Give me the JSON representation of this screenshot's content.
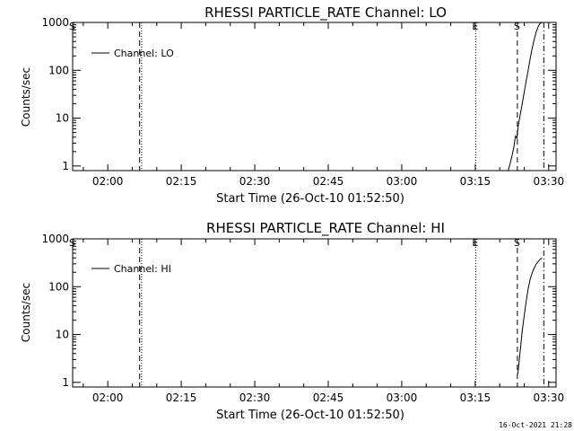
{
  "footer_timestamp": "16-Oct-2021 21:28",
  "colors": {
    "background": "#ffffff",
    "ink": "#000000"
  },
  "chart_data": [
    {
      "type": "line",
      "title": "RHESSI PARTICLE_RATE Channel: LO",
      "xlabel": "Start Time (26-Oct-10 01:52:50)",
      "ylabel": "Counts/sec",
      "y_scale": "log",
      "ylim": [
        0.8,
        1000
      ],
      "xlim_minutes": [
        112.83,
        211.5
      ],
      "x_ticks": [
        {
          "label": "02:00",
          "min": 120
        },
        {
          "label": "02:15",
          "min": 135
        },
        {
          "label": "02:30",
          "min": 150
        },
        {
          "label": "02:45",
          "min": 165
        },
        {
          "label": "03:00",
          "min": 180
        },
        {
          "label": "03:15",
          "min": 195
        },
        {
          "label": "03:30",
          "min": 210
        }
      ],
      "y_ticks": [
        {
          "label": "1",
          "value": 1
        },
        {
          "label": "10",
          "value": 10
        },
        {
          "label": "100",
          "value": 100
        },
        {
          "label": "1000",
          "value": 1000
        }
      ],
      "legend": {
        "label": "Channel: LO",
        "placement": "top-left"
      },
      "markers": [
        {
          "label": "S",
          "min": 112.83,
          "style": "dashed"
        },
        {
          "label": "",
          "min": 126.5,
          "style": "dashed"
        },
        {
          "label": "",
          "min": 126.9,
          "style": "dotted"
        },
        {
          "label": "E",
          "min": 195.1,
          "style": "dotted"
        },
        {
          "label": "S",
          "min": 203.6,
          "style": "dashed"
        },
        {
          "label": "",
          "min": 209.0,
          "style": "dashdot"
        }
      ],
      "series": [
        {
          "x": [
            201.7,
            202.1,
            202.5,
            202.9,
            203.2,
            203.5,
            203.8,
            204.2,
            204.6,
            205.0,
            205.4,
            205.8,
            206.2,
            206.6,
            207.0,
            207.4,
            207.8,
            208.2,
            208.6,
            209.0
          ],
          "y": [
            0.8,
            1.1,
            1.6,
            2.5,
            4.2,
            3.8,
            7,
            12,
            20,
            35,
            60,
            100,
            170,
            280,
            420,
            620,
            800,
            950,
            1000,
            1000
          ]
        }
      ]
    },
    {
      "type": "line",
      "title": "RHESSI PARTICLE_RATE Channel: HI",
      "xlabel": "Start Time (26-Oct-10 01:52:50)",
      "ylabel": "Counts/sec",
      "y_scale": "log",
      "ylim": [
        0.8,
        1000
      ],
      "xlim_minutes": [
        112.83,
        211.5
      ],
      "x_ticks": [
        {
          "label": "02:00",
          "min": 120
        },
        {
          "label": "02:15",
          "min": 135
        },
        {
          "label": "02:30",
          "min": 150
        },
        {
          "label": "02:45",
          "min": 165
        },
        {
          "label": "03:00",
          "min": 180
        },
        {
          "label": "03:15",
          "min": 195
        },
        {
          "label": "03:30",
          "min": 210
        }
      ],
      "y_ticks": [
        {
          "label": "1",
          "value": 1
        },
        {
          "label": "10",
          "value": 10
        },
        {
          "label": "100",
          "value": 100
        },
        {
          "label": "1000",
          "value": 1000
        }
      ],
      "legend": {
        "label": "Channel: HI",
        "placement": "top-left"
      },
      "markers": [
        {
          "label": "S",
          "min": 112.83,
          "style": "dashed"
        },
        {
          "label": "",
          "min": 126.5,
          "style": "dashed"
        },
        {
          "label": "",
          "min": 126.9,
          "style": "dotted"
        },
        {
          "label": "E",
          "min": 195.1,
          "style": "dotted"
        },
        {
          "label": "S",
          "min": 203.6,
          "style": "dashed"
        },
        {
          "label": "",
          "min": 209.0,
          "style": "dashdot"
        }
      ],
      "series": [
        {
          "x": [
            203.7,
            204.0,
            204.3,
            204.6,
            205.0,
            205.4,
            205.8,
            206.2,
            206.6,
            207.0,
            207.4,
            207.8,
            208.2,
            208.6
          ],
          "y": [
            1.5,
            3,
            6,
            12,
            25,
            50,
            90,
            140,
            190,
            240,
            290,
            330,
            370,
            400
          ]
        }
      ]
    }
  ]
}
